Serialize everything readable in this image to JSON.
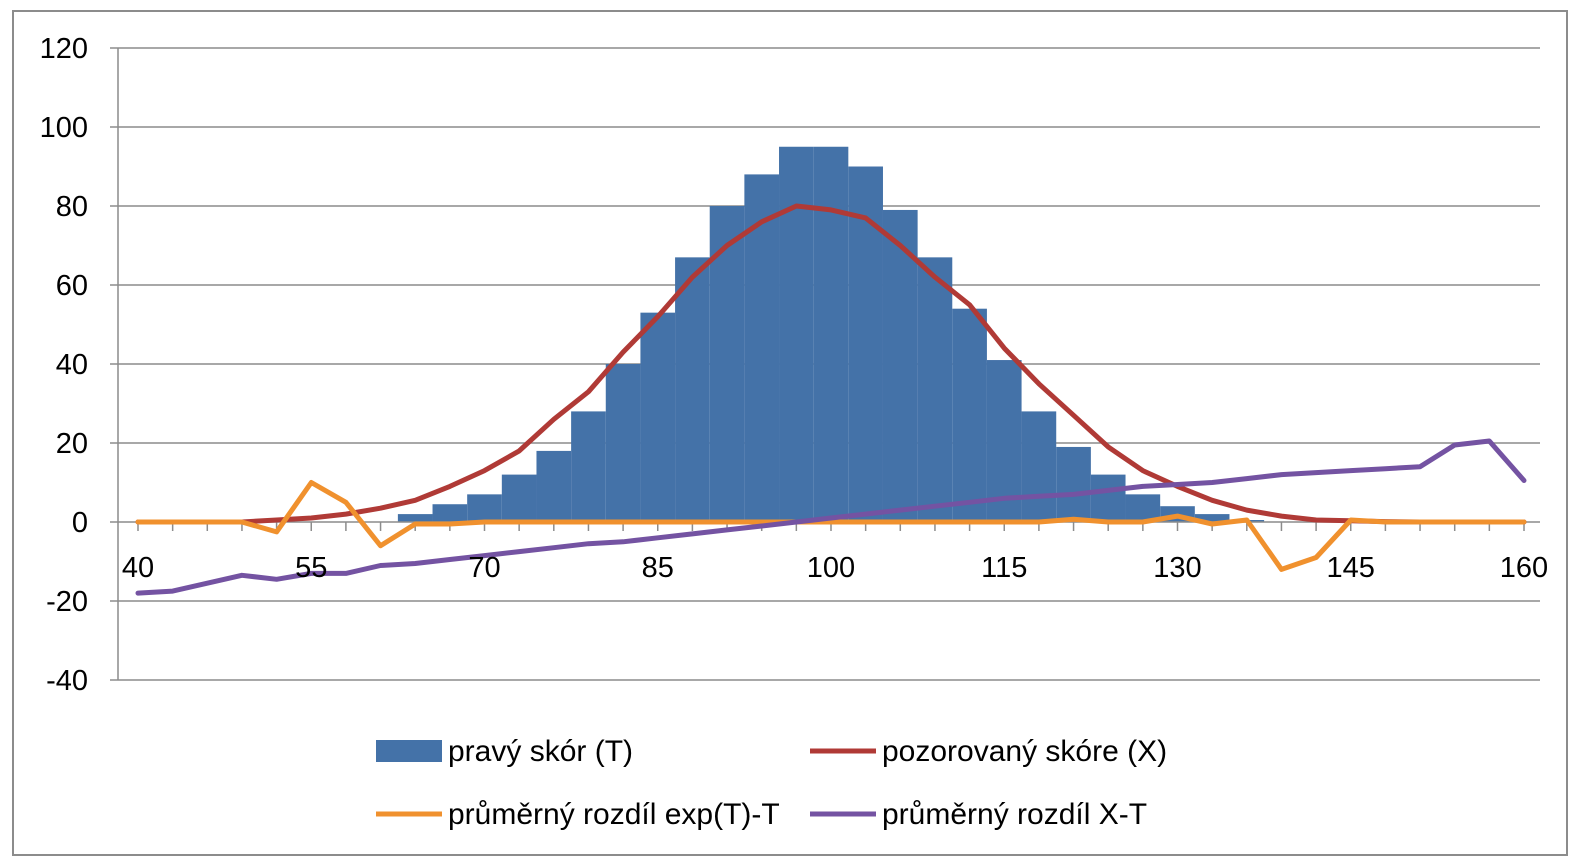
{
  "chart_data": {
    "type": "bar",
    "y_ticks": [
      "120",
      "100",
      "80",
      "60",
      "40",
      "20",
      "0",
      "-20",
      "-40"
    ],
    "ylim": [
      -40,
      120
    ],
    "x_ticks": [
      "40",
      "55",
      "70",
      "85",
      "100",
      "115",
      "130",
      "145",
      "160"
    ],
    "xlim": [
      40,
      160
    ],
    "grid": true,
    "legend_position": "bottom",
    "x": [
      40,
      43,
      46,
      49,
      52,
      55,
      58,
      61,
      64,
      67,
      70,
      73,
      76,
      79,
      82,
      85,
      88,
      91,
      94,
      97,
      100,
      103,
      106,
      109,
      112,
      115,
      118,
      121,
      124,
      127,
      130,
      133,
      136,
      139,
      142,
      145,
      148,
      151,
      154,
      157,
      160
    ],
    "series": [
      {
        "name": "pravý skór (T)",
        "kind": "bar",
        "color": "#4472a8",
        "values": [
          0,
          0,
          0,
          0,
          0,
          0,
          0,
          0,
          2,
          4.5,
          7,
          12,
          18,
          28,
          40,
          53,
          67,
          80,
          88,
          95,
          95,
          90,
          79,
          67,
          54,
          41,
          28,
          19,
          12,
          7,
          4,
          2,
          0.5,
          0,
          0,
          0,
          0,
          0,
          0,
          0,
          0
        ]
      },
      {
        "name": "pozorovaný skóre (X)",
        "kind": "line",
        "color": "#b03a36",
        "values": [
          0,
          0,
          0,
          0,
          0.5,
          1,
          2,
          3.5,
          5.5,
          9,
          13,
          18,
          26,
          33,
          43,
          52,
          62,
          70,
          76,
          80,
          79,
          77,
          70,
          62,
          55,
          44,
          35,
          27,
          19,
          13,
          9,
          5.5,
          3,
          1.5,
          0.5,
          0.3,
          0.1,
          0,
          0,
          0,
          0
        ]
      },
      {
        "name": "průměrný rozdíl exp(T)-T",
        "kind": "line",
        "color": "#f0912e",
        "values": [
          0,
          0,
          0,
          0,
          -2.5,
          10,
          5,
          -6,
          -0.5,
          -0.5,
          0,
          0,
          0,
          0,
          0,
          0,
          0,
          0,
          0,
          0,
          0,
          0,
          0,
          0,
          0,
          0,
          0,
          0.7,
          0,
          0,
          1.5,
          -0.5,
          0.5,
          -12,
          -9,
          0.5,
          0,
          0,
          0,
          0,
          0
        ]
      },
      {
        "name": "průměrný rozdíl X-T",
        "kind": "line",
        "color": "#7453a2",
        "values": [
          -18,
          -17.5,
          -15.5,
          -13.5,
          -14.5,
          -13,
          -13,
          -11,
          -10.5,
          -9.5,
          -8.5,
          -7.5,
          -6.5,
          -5.5,
          -5,
          -4,
          -3,
          -2,
          -1,
          0,
          1,
          2,
          3,
          4,
          5,
          6,
          6.5,
          7,
          8,
          9,
          9.5,
          10,
          11,
          12,
          12.5,
          13,
          13.5,
          14,
          19.5,
          20.5,
          10.5
        ]
      }
    ]
  }
}
